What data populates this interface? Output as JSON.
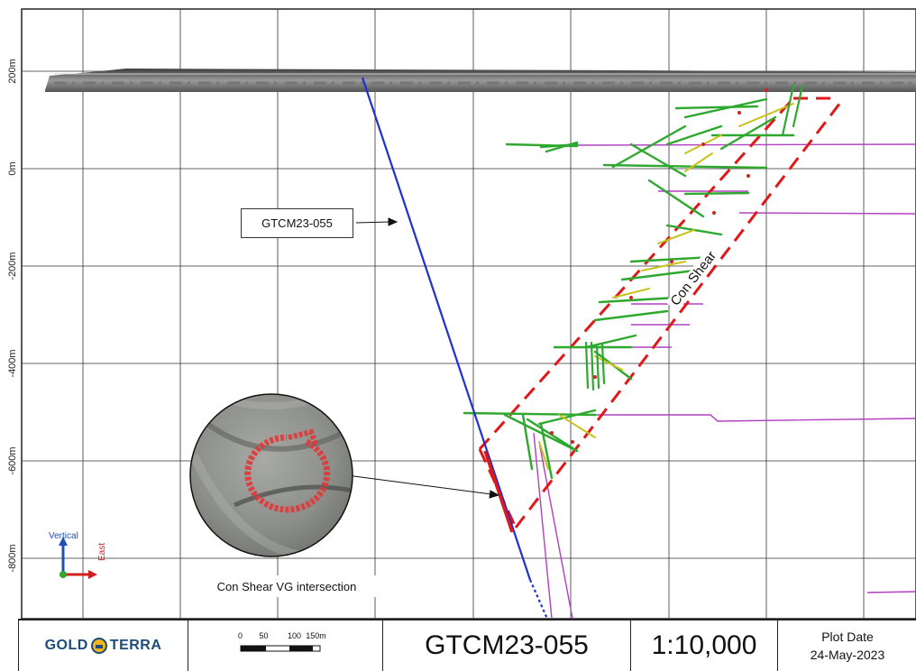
{
  "axis": {
    "elevation_labels": [
      {
        "value": 200,
        "text": "200m"
      },
      {
        "value": 0,
        "text": "0m"
      },
      {
        "value": -200,
        "text": "-200m"
      },
      {
        "value": -400,
        "text": "-400m"
      },
      {
        "value": -600,
        "text": "-600m"
      },
      {
        "value": -800,
        "text": "-800m"
      }
    ]
  },
  "labels": {
    "drillhole": "GTCM23-055",
    "shear_zone": "Con Shear",
    "core_caption": "Con Shear VG intersection",
    "compass_vertical": "Vertical",
    "compass_east": "East"
  },
  "title_block": {
    "logo_left": "GOLD",
    "logo_right": "TERRA",
    "scalebar_ticks": [
      "0",
      "50",
      "100",
      "150m"
    ],
    "hole_id": "GTCM23-055",
    "scale": "1:10,000",
    "plot_date_label": "Plot Date",
    "plot_date": "24-May-2023"
  },
  "colors": {
    "drillhole_trace": "#1f2fd0",
    "vg_interval": "#e01818",
    "shear_outline": "#e01818",
    "historic_holes": "#b040c0",
    "assay_high": "#2ea82e",
    "assay_mid": "#d4d21a"
  }
}
